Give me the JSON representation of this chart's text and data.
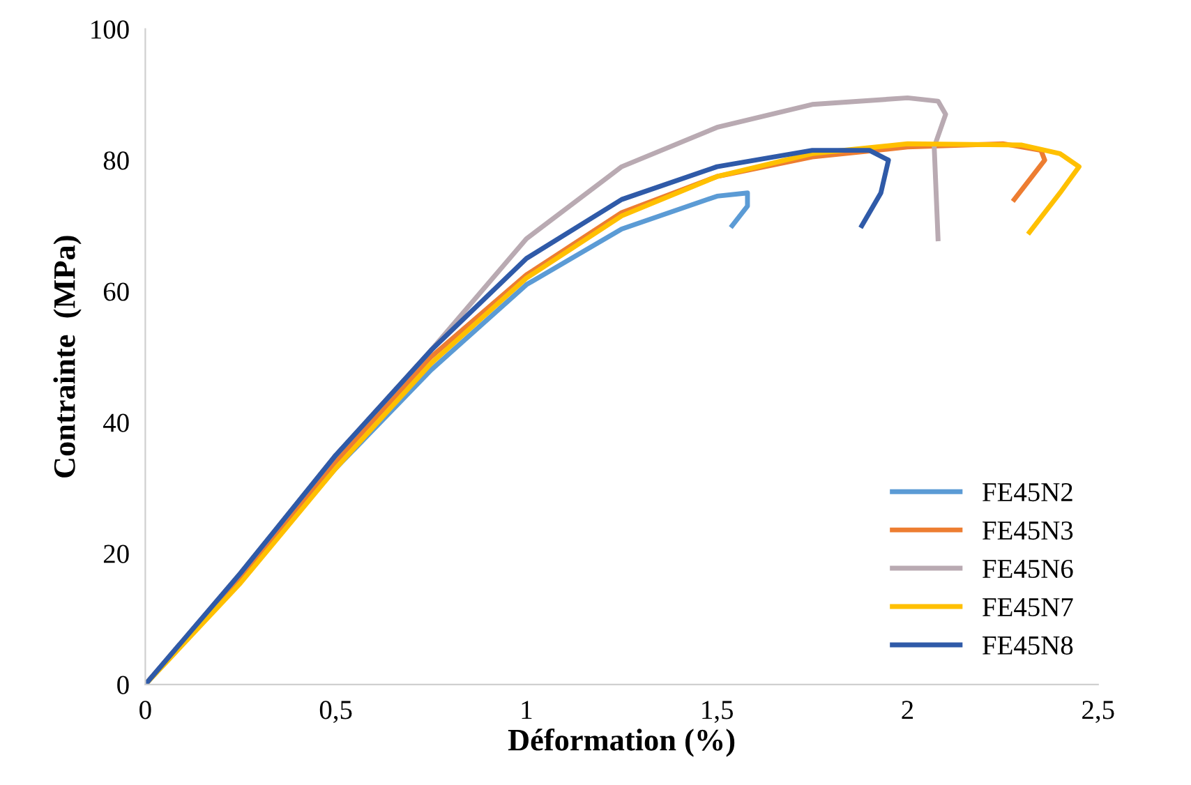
{
  "chart_data": {
    "type": "line",
    "xlabel": "Déformation (%)",
    "ylabel": "Contrainte  (MPa)",
    "xlim": [
      0,
      2.5
    ],
    "ylim": [
      0,
      100
    ],
    "xticks": [
      0,
      {
        "value": 0.5,
        "label": "0,5"
      },
      1,
      {
        "value": 1.5,
        "label": "1,5"
      },
      2,
      {
        "value": 2.5,
        "label": "2,5"
      }
    ],
    "yticks": [
      0,
      20,
      40,
      60,
      80,
      100
    ],
    "grid": false,
    "legend": "bottom right",
    "marker": "none",
    "line_style": "solid",
    "series": [
      {
        "name": "FE45N2",
        "color": "#5b9bd5",
        "x": [
          0,
          0.25,
          0.5,
          0.75,
          1,
          1.25,
          1.5,
          1.58,
          1.58,
          1.54
        ],
        "values": [
          0,
          16,
          33,
          48,
          61,
          69.5,
          74.5,
          75,
          73,
          70
        ]
      },
      {
        "name": "FE45N3",
        "color": "#ed7d31",
        "x": [
          0,
          0.25,
          0.5,
          0.75,
          1,
          1.25,
          1.5,
          1.75,
          2,
          2.25,
          2.35,
          2.36,
          2.28
        ],
        "values": [
          0,
          16.5,
          34,
          50,
          62.5,
          72,
          77.5,
          80.5,
          82,
          82.5,
          81.5,
          80,
          74
        ]
      },
      {
        "name": "FE45N6",
        "color": "#b9aab2",
        "x": [
          0,
          0.25,
          0.5,
          0.75,
          1,
          1.25,
          1.5,
          1.75,
          2,
          2.08,
          2.1,
          2.07,
          2.08
        ],
        "values": [
          0,
          17,
          35,
          51,
          68,
          79,
          85,
          88.5,
          89.5,
          89,
          87,
          82,
          68
        ]
      },
      {
        "name": "FE45N7",
        "color": "#ffc000",
        "x": [
          0,
          0.25,
          0.5,
          0.75,
          1,
          1.25,
          1.5,
          1.75,
          2,
          2.3,
          2.4,
          2.45,
          2.4,
          2.32
        ],
        "values": [
          0,
          15.5,
          33,
          49,
          62,
          71.5,
          77.5,
          81,
          82.5,
          82.3,
          81,
          79,
          75,
          69
        ]
      },
      {
        "name": "FE45N8",
        "color": "#2f5aa8",
        "x": [
          0,
          0.25,
          0.5,
          0.75,
          1,
          1.25,
          1.5,
          1.75,
          1.9,
          1.95,
          1.93,
          1.88
        ],
        "values": [
          0,
          17,
          35,
          51,
          65,
          74,
          79,
          81.5,
          81.5,
          80,
          75,
          70
        ]
      }
    ]
  }
}
